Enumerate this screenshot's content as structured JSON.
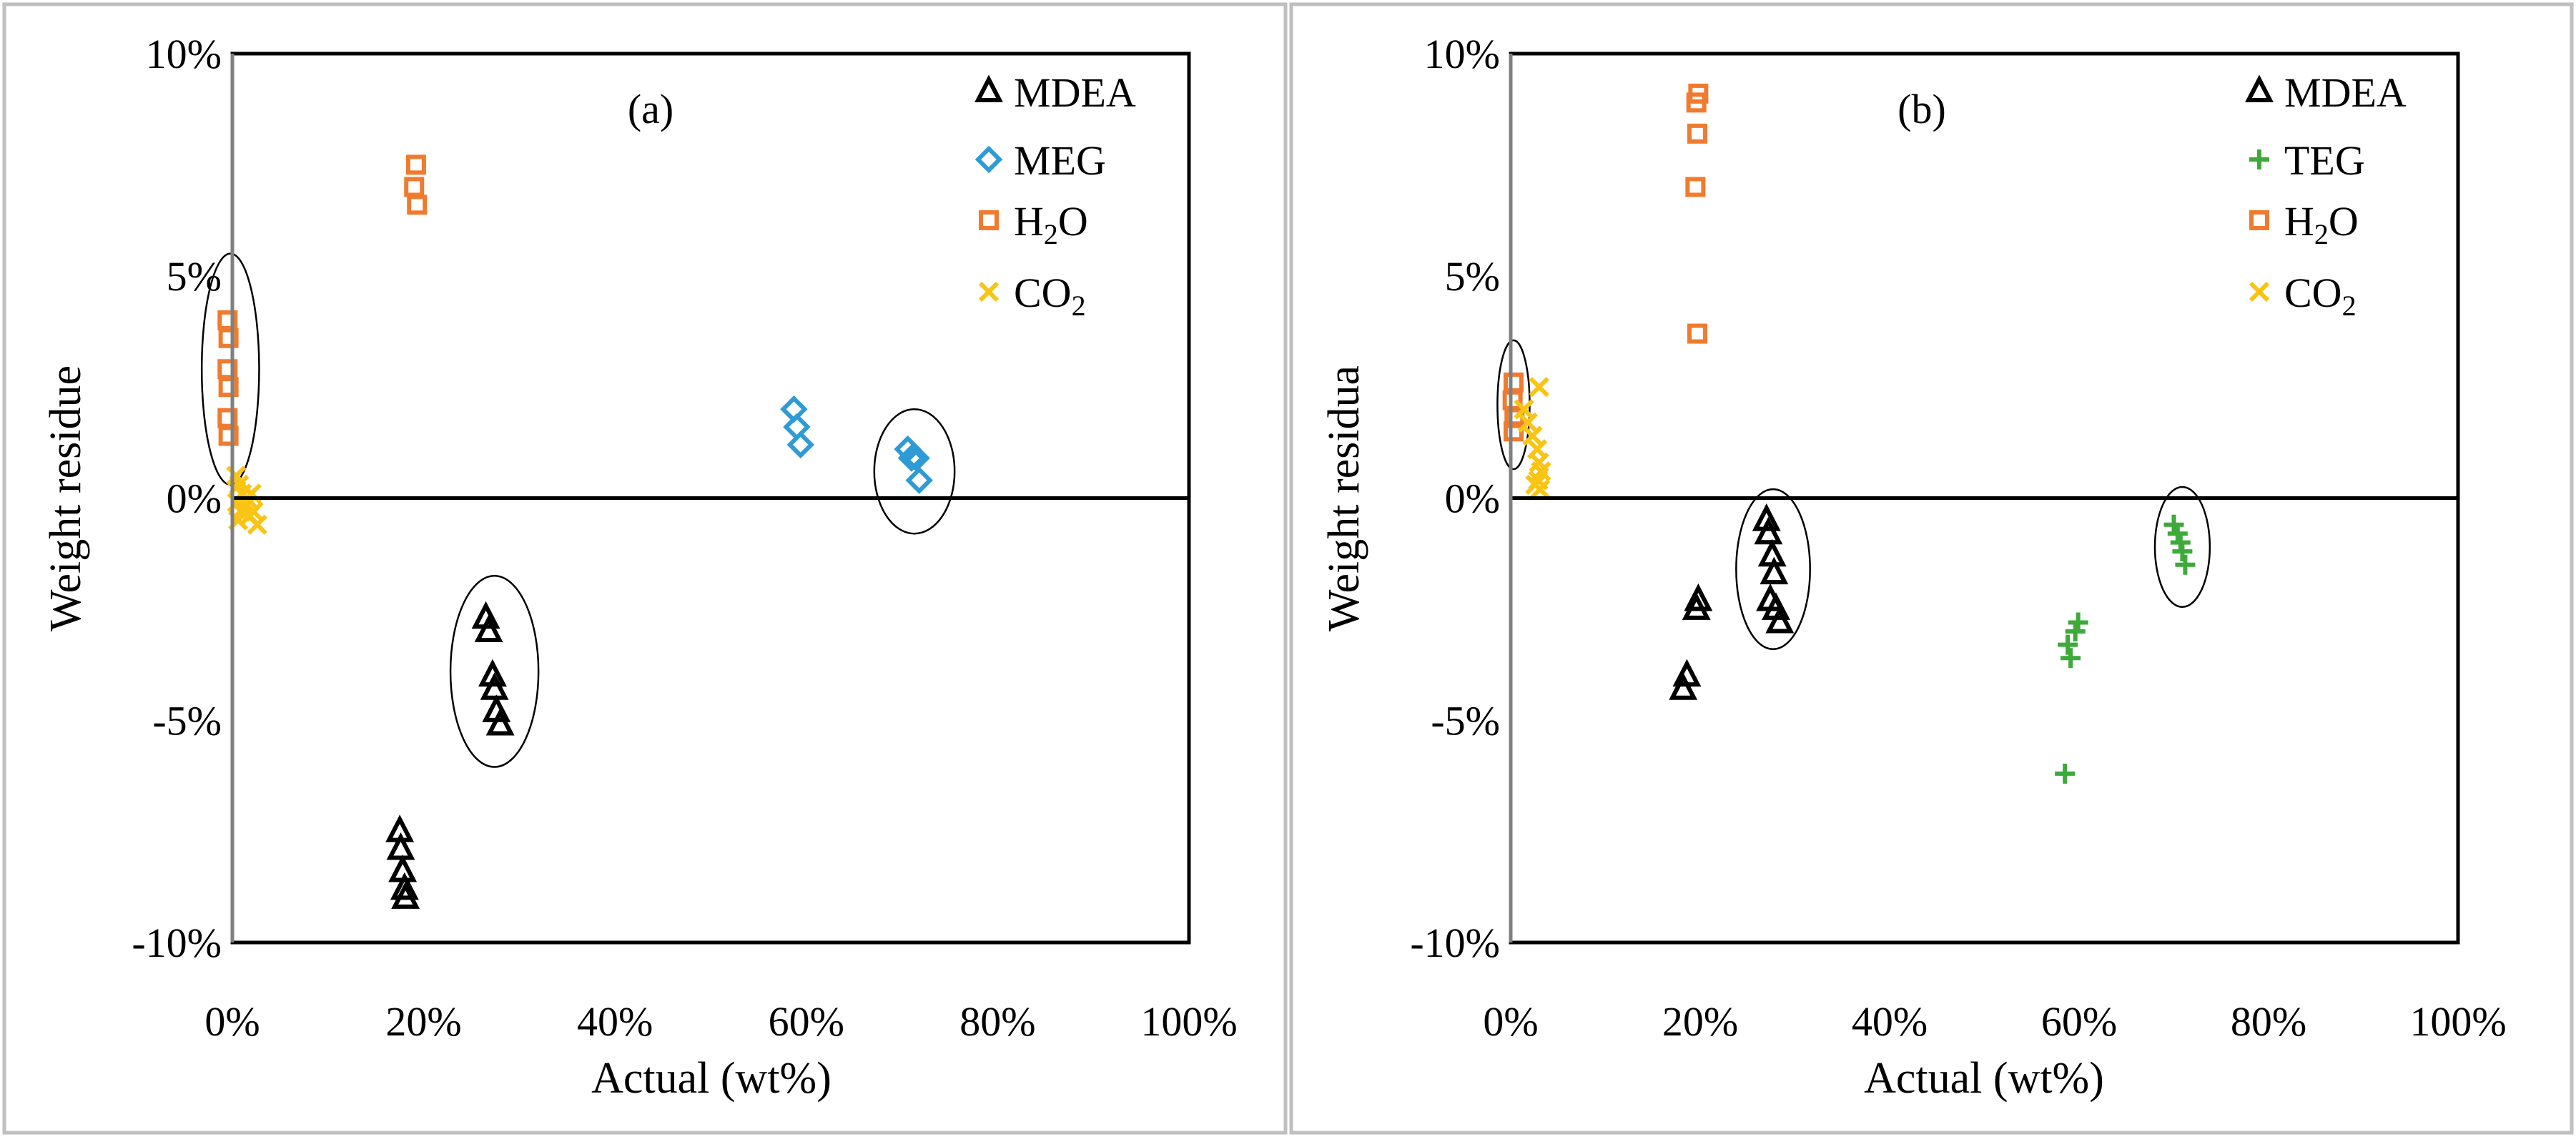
{
  "colors": {
    "mdea": "#000000",
    "meg": "#2F9BD6",
    "teg": "#3DAA3A",
    "h2o": "#F07B2E",
    "co2": "#F9C414",
    "frame": "#BFBFBF",
    "ellipse": "#000000"
  },
  "chart_data": [
    {
      "type": "scatter",
      "panel_label": "(a)",
      "xlabel": "Actual (wt%)",
      "ylabel": "Weight residue",
      "xlim": [
        0,
        100
      ],
      "ylim": [
        -10,
        10
      ],
      "x_ticks": [
        "0%",
        "20%",
        "40%",
        "60%",
        "80%",
        "100%"
      ],
      "y_ticks": [
        "10%",
        "5%",
        "0%",
        "-5%",
        "-10%"
      ],
      "x_tick_values": [
        0,
        20,
        40,
        60,
        80,
        100
      ],
      "y_tick_values": [
        10,
        5,
        0,
        -5,
        -10
      ],
      "legend": [
        {
          "name": "MDEA",
          "marker": "triangle",
          "color_key": "mdea"
        },
        {
          "name": "MEG",
          "marker": "diamond",
          "color_key": "meg"
        },
        {
          "name": "H",
          "sub": "2",
          "tail": "O",
          "marker": "square",
          "color_key": "h2o"
        },
        {
          "name": "CO",
          "sub": "2",
          "tail": "",
          "marker": "x",
          "color_key": "co2"
        }
      ],
      "series": [
        {
          "name": "MDEA",
          "marker": "triangle",
          "color_key": "mdea",
          "points": [
            [
              17.5,
              -7.5
            ],
            [
              17.6,
              -7.9
            ],
            [
              17.8,
              -8.4
            ],
            [
              18.0,
              -8.8
            ],
            [
              18.1,
              -9.0
            ],
            [
              26.5,
              -2.7
            ],
            [
              26.8,
              -3.0
            ],
            [
              27.2,
              -4.0
            ],
            [
              27.4,
              -4.3
            ],
            [
              27.6,
              -4.8
            ],
            [
              28.0,
              -5.1
            ]
          ]
        },
        {
          "name": "MEG",
          "marker": "diamond",
          "color_key": "meg",
          "points": [
            [
              58.7,
              2.0
            ],
            [
              59.0,
              1.6
            ],
            [
              59.4,
              1.2
            ],
            [
              70.6,
              1.1
            ],
            [
              71.0,
              0.9
            ],
            [
              71.5,
              0.9
            ],
            [
              71.8,
              0.4
            ]
          ]
        },
        {
          "name": "H2O",
          "marker": "square",
          "color_key": "h2o",
          "points": [
            [
              -0.5,
              4.0
            ],
            [
              -0.4,
              3.6
            ],
            [
              -0.5,
              2.9
            ],
            [
              -0.4,
              2.5
            ],
            [
              -0.5,
              1.8
            ],
            [
              -0.4,
              1.4
            ],
            [
              19.2,
              7.5
            ],
            [
              19.0,
              7.0
            ],
            [
              19.3,
              6.6
            ]
          ]
        },
        {
          "name": "CO2",
          "marker": "x",
          "color_key": "co2",
          "points": [
            [
              0.4,
              0.5
            ],
            [
              0.7,
              0.3
            ],
            [
              1.0,
              0.1
            ],
            [
              0.5,
              -0.1
            ],
            [
              0.9,
              -0.3
            ],
            [
              1.3,
              -0.2
            ],
            [
              1.8,
              -0.4
            ],
            [
              2.2,
              -0.3
            ],
            [
              2.6,
              -0.6
            ],
            [
              0.6,
              -0.5
            ],
            [
              1.5,
              0.0
            ],
            [
              2.0,
              0.1
            ]
          ]
        }
      ],
      "ellipses": [
        {
          "cx": -0.2,
          "cy": 2.9,
          "rx": 3.0,
          "ry": 2.6
        },
        {
          "cx": 27.4,
          "cy": -3.9,
          "rx": 4.6,
          "ry": 2.15
        },
        {
          "cx": 71.3,
          "cy": 0.6,
          "rx": 4.2,
          "ry": 1.4
        }
      ]
    },
    {
      "type": "scatter",
      "panel_label": "(b)",
      "xlabel": "Actual (wt%)",
      "ylabel": "Weight residua",
      "xlim": [
        0,
        100
      ],
      "ylim": [
        -10,
        10
      ],
      "x_ticks": [
        "0%",
        "20%",
        "40%",
        "60%",
        "80%",
        "100%"
      ],
      "y_ticks": [
        "10%",
        "5%",
        "0%",
        "-5%",
        "-10%"
      ],
      "x_tick_values": [
        0,
        20,
        40,
        60,
        80,
        100
      ],
      "y_tick_values": [
        10,
        5,
        0,
        -5,
        -10
      ],
      "legend": [
        {
          "name": "MDEA",
          "marker": "triangle",
          "color_key": "mdea"
        },
        {
          "name": "TEG",
          "marker": "plus",
          "color_key": "teg"
        },
        {
          "name": "H",
          "sub": "2",
          "tail": "O",
          "marker": "square",
          "color_key": "h2o"
        },
        {
          "name": "CO",
          "sub": "2",
          "tail": "",
          "marker": "x",
          "color_key": "co2"
        }
      ],
      "series": [
        {
          "name": "MDEA",
          "marker": "triangle",
          "color_key": "mdea",
          "points": [
            [
              18.2,
              -4.3
            ],
            [
              18.6,
              -4.0
            ],
            [
              19.6,
              -2.5
            ],
            [
              19.8,
              -2.3
            ],
            [
              27.0,
              -0.5
            ],
            [
              27.2,
              -0.8
            ],
            [
              27.6,
              -1.3
            ],
            [
              27.8,
              -1.7
            ],
            [
              27.4,
              -2.3
            ],
            [
              28.0,
              -2.5
            ],
            [
              28.4,
              -2.8
            ]
          ]
        },
        {
          "name": "TEG",
          "marker": "plus",
          "color_key": "teg",
          "points": [
            [
              58.5,
              -6.2
            ],
            [
              58.8,
              -3.3
            ],
            [
              59.1,
              -3.6
            ],
            [
              59.6,
              -3.0
            ],
            [
              59.9,
              -2.8
            ],
            [
              70.0,
              -0.6
            ],
            [
              70.4,
              -0.8
            ],
            [
              70.7,
              -1.0
            ],
            [
              70.9,
              -1.2
            ],
            [
              71.2,
              -1.5
            ]
          ]
        },
        {
          "name": "H2O",
          "marker": "square",
          "color_key": "h2o",
          "points": [
            [
              19.8,
              9.1
            ],
            [
              19.6,
              8.9
            ],
            [
              19.7,
              8.2
            ],
            [
              19.5,
              7.0
            ],
            [
              19.7,
              3.7
            ],
            [
              0.3,
              2.6
            ],
            [
              0.2,
              2.2
            ],
            [
              0.4,
              1.8
            ],
            [
              0.3,
              1.5
            ]
          ]
        },
        {
          "name": "CO2",
          "marker": "x",
          "color_key": "co2",
          "points": [
            [
              3.0,
              2.5
            ],
            [
              1.4,
              2.0
            ],
            [
              1.8,
              1.7
            ],
            [
              2.3,
              1.4
            ],
            [
              2.8,
              1.1
            ],
            [
              3.0,
              0.8
            ],
            [
              3.2,
              0.6
            ],
            [
              2.9,
              0.4
            ],
            [
              3.1,
              0.2
            ],
            [
              2.6,
              0.3
            ]
          ]
        }
      ],
      "ellipses": [
        {
          "cx": 0.3,
          "cy": 2.1,
          "rx": 1.7,
          "ry": 1.45
        },
        {
          "cx": 27.7,
          "cy": -1.6,
          "rx": 3.9,
          "ry": 1.8
        },
        {
          "cx": 70.9,
          "cy": -1.1,
          "rx": 2.9,
          "ry": 1.35
        }
      ]
    }
  ]
}
